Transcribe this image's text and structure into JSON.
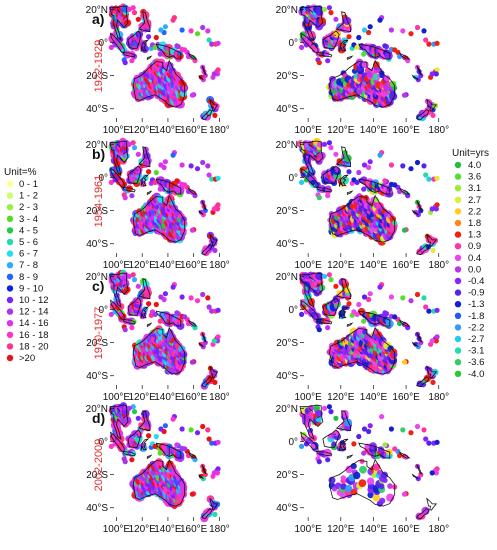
{
  "rows": [
    {
      "label": "a)",
      "period": "1922-1929"
    },
    {
      "label": "b)",
      "period": "1954-1961"
    },
    {
      "label": "c)",
      "period": "1970-1977"
    },
    {
      "label": "d)",
      "period": "2002-2009"
    }
  ],
  "lat_ticks": [
    "20°N",
    "0°",
    "20°S",
    "40°S"
  ],
  "lon_ticks": [
    "100°E",
    "120°E",
    "140°E",
    "160°E",
    "180°"
  ],
  "legend_percent": {
    "title": "Unit=%",
    "items": [
      {
        "label": "0 - 1",
        "color": "#ffff99"
      },
      {
        "label": "1 - 2",
        "color": "#ccff66"
      },
      {
        "label": "2 - 3",
        "color": "#99ee44"
      },
      {
        "label": "3 - 4",
        "color": "#55dd22"
      },
      {
        "label": "4 - 5",
        "color": "#22cc44"
      },
      {
        "label": "5 - 6",
        "color": "#22ddaa"
      },
      {
        "label": "6 - 7",
        "color": "#22ddee"
      },
      {
        "label": "7 - 8",
        "color": "#33aaff"
      },
      {
        "label": "8 - 9",
        "color": "#2266ff"
      },
      {
        "label": "9 - 10",
        "color": "#1122dd"
      },
      {
        "label": "10 - 12",
        "color": "#7722ff"
      },
      {
        "label": "12 - 14",
        "color": "#aa33ee"
      },
      {
        "label": "14 - 16",
        "color": "#dd33ee"
      },
      {
        "label": "16 - 18",
        "color": "#ff33cc"
      },
      {
        "label": "18 - 20",
        "color": "#ff3388"
      },
      {
        "label": ">20",
        "color": "#ee1111"
      }
    ]
  },
  "legend_years": {
    "title": "Unit=yrs",
    "items": [
      {
        "label": "4.0",
        "color": "#22bb44"
      },
      {
        "label": "3.6",
        "color": "#55dd33"
      },
      {
        "label": "3.1",
        "color": "#99ee33"
      },
      {
        "label": "2.7",
        "color": "#ddee33"
      },
      {
        "label": "2.2",
        "color": "#ffcc22"
      },
      {
        "label": "1.8",
        "color": "#ff8811"
      },
      {
        "label": "1.3",
        "color": "#ee2211"
      },
      {
        "label": "0.9",
        "color": "#ff33aa"
      },
      {
        "label": "0.4",
        "color": "#ee44ee"
      },
      {
        "label": "0.0",
        "color": "#bb33ee"
      },
      {
        "label": "-0.4",
        "color": "#8822ff"
      },
      {
        "label": "-0.9",
        "color": "#5522ee"
      },
      {
        "label": "-1.3",
        "color": "#1122cc"
      },
      {
        "label": "-1.8",
        "color": "#2255ff"
      },
      {
        "label": "-2.2",
        "color": "#3399ff"
      },
      {
        "label": "-2.7",
        "color": "#22ccee"
      },
      {
        "label": "-3.1",
        "color": "#22ddaa"
      },
      {
        "label": "-3.6",
        "color": "#33cc66"
      },
      {
        "label": "-4.0",
        "color": "#22cc33"
      }
    ]
  }
}
